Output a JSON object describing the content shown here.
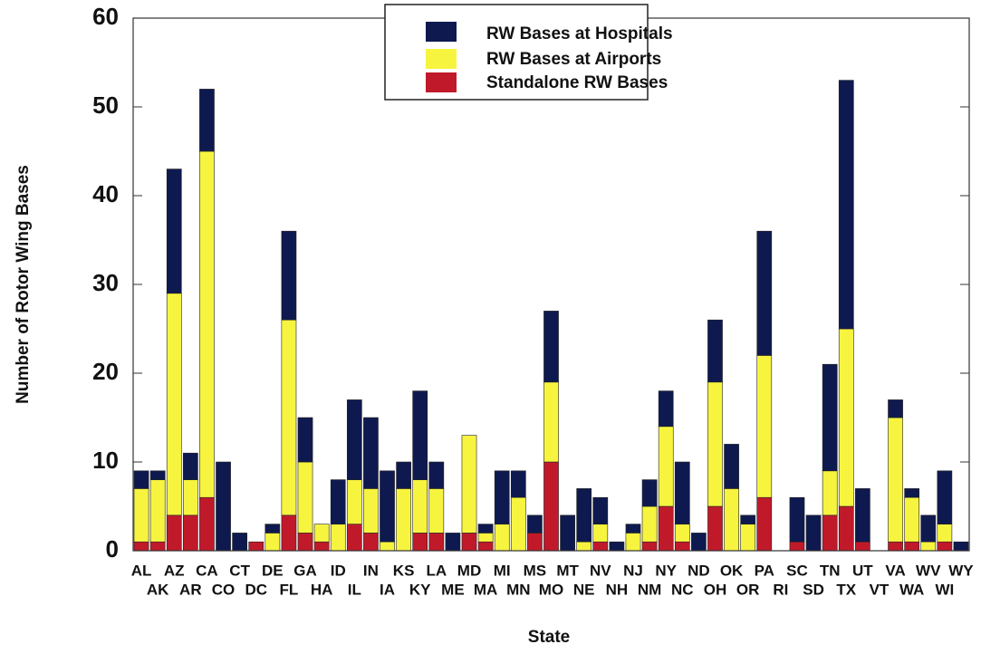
{
  "chart_data": {
    "type": "stacked_bar",
    "x_label": "State",
    "y_label": "Number of Rotor Wing Bases",
    "categories": [
      "AL",
      "AK",
      "AZ",
      "AR",
      "CA",
      "CO",
      "CT",
      "DC",
      "DE",
      "FL",
      "GA",
      "HA",
      "ID",
      "IL",
      "IN",
      "IA",
      "KS",
      "KY",
      "LA",
      "ME",
      "MD",
      "MA",
      "MI",
      "MN",
      "MS",
      "MO",
      "MT",
      "NE",
      "NV",
      "NH",
      "NJ",
      "NM",
      "NY",
      "NC",
      "ND",
      "OH",
      "OK",
      "OR",
      "PA",
      "RI",
      "SC",
      "SD",
      "TN",
      "TX",
      "UT",
      "VT",
      "VA",
      "WA",
      "WV",
      "WI",
      "WY"
    ],
    "series": [
      {
        "name": "RW Bases at Hospitals",
        "color": "#0e1a4f",
        "values": [
          2,
          1,
          14,
          3,
          7,
          10,
          2,
          0,
          1,
          10,
          5,
          0,
          5,
          9,
          8,
          8,
          3,
          10,
          3,
          2,
          0,
          1,
          6,
          3,
          2,
          8,
          4,
          6,
          3,
          1,
          1,
          3,
          4,
          7,
          2,
          7,
          5,
          1,
          14,
          0,
          5,
          4,
          12,
          28,
          6,
          0,
          2,
          1,
          3,
          6,
          1
        ]
      },
      {
        "name": "RW Bases at Airports",
        "color": "#f7f440",
        "values": [
          6,
          7,
          25,
          4,
          39,
          0,
          0,
          0,
          2,
          22,
          8,
          2,
          3,
          5,
          5,
          1,
          7,
          6,
          5,
          0,
          11,
          1,
          3,
          6,
          0,
          9,
          0,
          1,
          2,
          0,
          2,
          4,
          9,
          2,
          0,
          14,
          7,
          3,
          16,
          0,
          0,
          0,
          5,
          20,
          0,
          0,
          14,
          5,
          1,
          2,
          0
        ]
      },
      {
        "name": "Standalone RW Bases",
        "color": "#c01a2a",
        "values": [
          1,
          1,
          4,
          4,
          6,
          0,
          0,
          1,
          0,
          4,
          2,
          1,
          0,
          3,
          2,
          0,
          0,
          2,
          2,
          0,
          2,
          1,
          0,
          0,
          2,
          10,
          0,
          0,
          1,
          0,
          0,
          1,
          5,
          1,
          0,
          5,
          0,
          0,
          6,
          0,
          1,
          0,
          4,
          5,
          1,
          0,
          1,
          1,
          0,
          1,
          0
        ]
      }
    ],
    "ylim": [
      0,
      60
    ],
    "yticks": [
      0,
      10,
      20,
      30,
      40,
      50,
      60
    ]
  }
}
